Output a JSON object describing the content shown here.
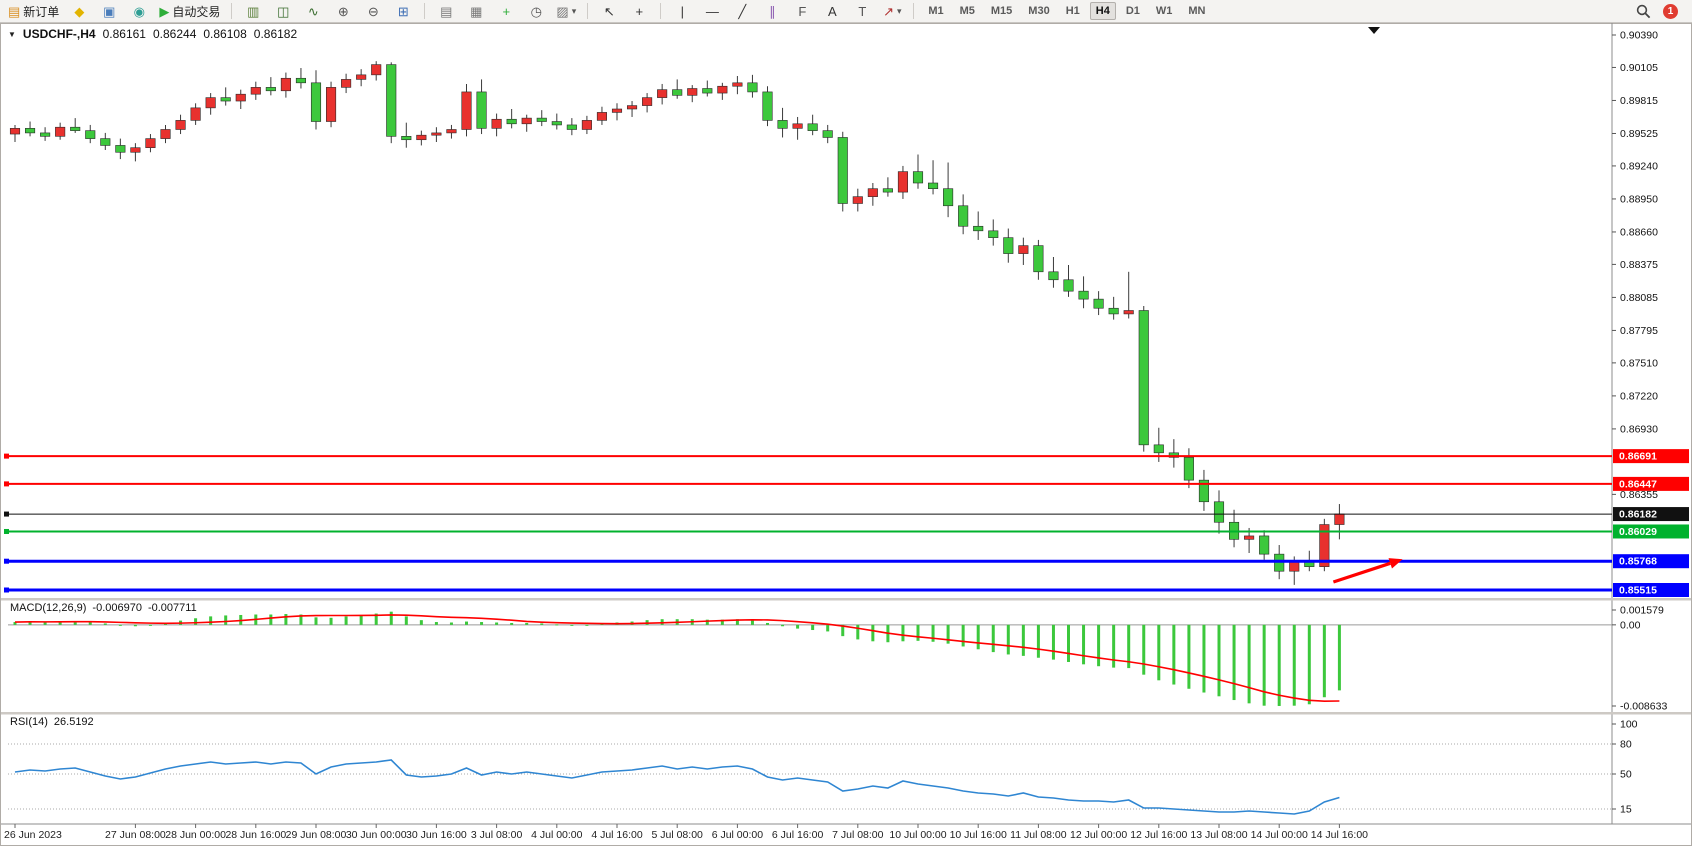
{
  "icons": {
    "down_triangle": "▼",
    "caret": "▾"
  },
  "toolbar": {
    "notification_count": "1",
    "timeframes": [
      "M1",
      "M5",
      "M15",
      "M30",
      "H1",
      "H4",
      "D1",
      "W1",
      "MN"
    ],
    "active_timeframe": "H4",
    "left_buttons": [
      {
        "name": "new-order-button",
        "icon": "new-order-icon",
        "glyph": "▤",
        "glyph_color": "#d98f22",
        "label": "新订单"
      },
      {
        "name": "metaeditor-button",
        "icon": "metaeditor-icon",
        "glyph": "◆",
        "glyph_color": "#e2b400"
      },
      {
        "name": "print-button",
        "icon": "printer-icon",
        "glyph": "▣",
        "glyph_color": "#4a7dbb"
      },
      {
        "name": "news-button",
        "icon": "globe-icon",
        "glyph": "◉",
        "glyph_color": "#2e9e94"
      },
      {
        "name": "autotrading-button",
        "icon": "autotrading-play-icon",
        "glyph": "▶",
        "glyph_color": "#2fae3a",
        "label": "自动交易"
      }
    ],
    "chart_buttons": [
      {
        "name": "bar-chart-button",
        "icon": "bar-chart-icon",
        "glyph": "▥",
        "glyph_color": "#5a7f3a"
      },
      {
        "name": "candlestick-button",
        "icon": "candlestick-icon",
        "glyph": "◫",
        "glyph_color": "#3a6d2f"
      },
      {
        "name": "line-chart-button",
        "icon": "line-chart-icon",
        "glyph": "∿",
        "glyph_color": "#3a6d2f"
      },
      {
        "name": "zoom-in-button",
        "icon": "zoom-in-icon",
        "glyph": "⊕",
        "glyph_color": "#555555"
      },
      {
        "name": "zoom-out-button",
        "icon": "zoom-out-icon",
        "glyph": "⊖",
        "glyph_color": "#555555"
      },
      {
        "name": "tile-windows-button",
        "icon": "tile-windows-icon",
        "glyph": "⊞",
        "glyph_color": "#3f6fb5"
      }
    ],
    "indicator_buttons": [
      {
        "name": "charts-stack-button",
        "icon": "charts-stack-icon",
        "glyph": "▤",
        "glyph_color": "#777777"
      },
      {
        "name": "data-window-button",
        "icon": "data-window-icon",
        "glyph": "▦",
        "glyph_color": "#777777"
      },
      {
        "name": "add-indicator-button",
        "icon": "add-indicator-icon",
        "glyph": "+",
        "glyph_color": "#2fae3a"
      },
      {
        "name": "period-clock-button",
        "icon": "clock-icon",
        "glyph": "◷",
        "glyph_color": "#555555"
      },
      {
        "name": "template-button",
        "icon": "template-icon",
        "glyph": "▨",
        "glyph_color": "#777777",
        "caret": true
      }
    ],
    "cursor_buttons": [
      {
        "name": "cursor-button",
        "icon": "cursor-arrow-icon",
        "glyph": "↖",
        "glyph_color": "#333333"
      },
      {
        "name": "crosshair-button",
        "icon": "crosshair-icon",
        "glyph": "+",
        "glyph_color": "#333333"
      }
    ],
    "draw_buttons": [
      {
        "name": "vertical-line-button",
        "icon": "vertical-line-icon",
        "glyph": "|",
        "glyph_color": "#333333"
      },
      {
        "name": "horizontal-line-button",
        "icon": "horizontal-line-icon",
        "glyph": "—",
        "glyph_color": "#333333"
      },
      {
        "name": "trendline-button",
        "icon": "trendline-icon",
        "glyph": "╱",
        "glyph_color": "#333333"
      },
      {
        "name": "channel-button",
        "icon": "channel-icon",
        "glyph": "∥",
        "glyph_color": "#8a5ab0"
      },
      {
        "name": "fibonacci-button",
        "icon": "fibonacci-icon",
        "glyph": "F",
        "glyph_color": "#555555"
      },
      {
        "name": "text-button",
        "icon": "text-icon",
        "glyph": "A",
        "glyph_color": "#333333"
      },
      {
        "name": "label-button",
        "icon": "text-label-icon",
        "glyph": "T",
        "glyph_color": "#555555"
      },
      {
        "name": "arrows-button",
        "icon": "arrow-tool-icon",
        "glyph": "↗",
        "glyph_color": "#b03030",
        "caret": true
      }
    ]
  },
  "chart": {
    "symbol": "USDCHF-,H4",
    "open": "0.86161",
    "high": "0.86244",
    "low": "0.86108",
    "close": "0.86182"
  },
  "colors": {
    "bull": "#e8312e",
    "bear": "#3cc83c",
    "wick": "#3a3a3a",
    "body_outline": "#2a2a2a",
    "macd_hist": "#3cc83c",
    "macd_signal": "#ff0000",
    "rsi_line": "#2f86d2"
  },
  "chart_data": {
    "type": "candlestick",
    "symbol": "USDCHF-",
    "timeframe": "H4",
    "price_axis": {
      "top": 0.9039,
      "bottom": 0.85515,
      "ticks": [
        "0.90390",
        "0.90105",
        "0.89815",
        "0.89525",
        "0.89240",
        "0.88950",
        "0.88660",
        "0.88375",
        "0.88085",
        "0.87795",
        "0.87510",
        "0.87220",
        "0.86930",
        "0.86355"
      ]
    },
    "levels": [
      {
        "price": 0.86691,
        "label": "0.86691",
        "color": "#ff0000",
        "width": 2
      },
      {
        "price": 0.86447,
        "label": "0.86447",
        "color": "#ff0000",
        "width": 2
      },
      {
        "price": 0.86182,
        "label": "0.86182",
        "color": "#111111",
        "width": 1
      },
      {
        "price": 0.86029,
        "label": "0.86029",
        "color": "#00b22d",
        "width": 2
      },
      {
        "price": 0.85768,
        "label": "0.85768",
        "color": "#0000ff",
        "width": 3
      },
      {
        "price": 0.85515,
        "label": "0.85515",
        "color": "#0000ff",
        "width": 3
      }
    ],
    "candles": [
      [
        0.8952,
        0.896,
        0.8945,
        0.8957
      ],
      [
        0.8957,
        0.8963,
        0.895,
        0.8953
      ],
      [
        0.8953,
        0.8958,
        0.8946,
        0.895
      ],
      [
        0.895,
        0.8962,
        0.8947,
        0.8958
      ],
      [
        0.8958,
        0.8966,
        0.8953,
        0.8955
      ],
      [
        0.8955,
        0.896,
        0.8944,
        0.8948
      ],
      [
        0.8948,
        0.8953,
        0.8938,
        0.8942
      ],
      [
        0.8942,
        0.8948,
        0.893,
        0.8936
      ],
      [
        0.8936,
        0.8944,
        0.8928,
        0.894
      ],
      [
        0.894,
        0.8952,
        0.8936,
        0.8948
      ],
      [
        0.8948,
        0.896,
        0.8944,
        0.8956
      ],
      [
        0.8956,
        0.8969,
        0.8952,
        0.8964
      ],
      [
        0.8964,
        0.8979,
        0.896,
        0.8975
      ],
      [
        0.8975,
        0.8988,
        0.8969,
        0.8984
      ],
      [
        0.8984,
        0.8993,
        0.8977,
        0.8981
      ],
      [
        0.8981,
        0.8991,
        0.8974,
        0.8987
      ],
      [
        0.8987,
        0.8998,
        0.8982,
        0.8993
      ],
      [
        0.8993,
        0.9002,
        0.8986,
        0.899
      ],
      [
        0.899,
        0.9006,
        0.8984,
        0.9001
      ],
      [
        0.9001,
        0.901,
        0.8992,
        0.8997
      ],
      [
        0.8997,
        0.9008,
        0.8956,
        0.8963
      ],
      [
        0.8963,
        0.8998,
        0.8958,
        0.8993
      ],
      [
        0.8993,
        0.9005,
        0.8988,
        0.9
      ],
      [
        0.9,
        0.9009,
        0.8994,
        0.9004
      ],
      [
        0.9004,
        0.9016,
        0.8999,
        0.9013
      ],
      [
        0.9013,
        0.9015,
        0.8944,
        0.895
      ],
      [
        0.895,
        0.8962,
        0.894,
        0.8947
      ],
      [
        0.8947,
        0.8955,
        0.8942,
        0.8951
      ],
      [
        0.8951,
        0.8958,
        0.8945,
        0.8953
      ],
      [
        0.8953,
        0.896,
        0.8948,
        0.8956
      ],
      [
        0.8956,
        0.8996,
        0.895,
        0.8989
      ],
      [
        0.8989,
        0.9,
        0.8952,
        0.8957
      ],
      [
        0.8957,
        0.897,
        0.895,
        0.8965
      ],
      [
        0.8965,
        0.8974,
        0.8957,
        0.8961
      ],
      [
        0.8961,
        0.8969,
        0.8954,
        0.8966
      ],
      [
        0.8966,
        0.8973,
        0.8959,
        0.8963
      ],
      [
        0.8963,
        0.897,
        0.8956,
        0.896
      ],
      [
        0.896,
        0.8966,
        0.8951,
        0.8956
      ],
      [
        0.8956,
        0.8968,
        0.8952,
        0.8964
      ],
      [
        0.8964,
        0.8976,
        0.896,
        0.8971
      ],
      [
        0.8971,
        0.8979,
        0.8964,
        0.8974
      ],
      [
        0.8974,
        0.8981,
        0.8967,
        0.8977
      ],
      [
        0.8977,
        0.8988,
        0.8971,
        0.8984
      ],
      [
        0.8984,
        0.8996,
        0.8978,
        0.8991
      ],
      [
        0.8991,
        0.9,
        0.8983,
        0.8986
      ],
      [
        0.8986,
        0.8995,
        0.898,
        0.8992
      ],
      [
        0.8992,
        0.8999,
        0.8985,
        0.8988
      ],
      [
        0.8988,
        0.8997,
        0.8982,
        0.8994
      ],
      [
        0.8994,
        0.9003,
        0.8987,
        0.8997
      ],
      [
        0.8997,
        0.9004,
        0.8984,
        0.8989
      ],
      [
        0.8989,
        0.8994,
        0.8959,
        0.8964
      ],
      [
        0.8964,
        0.8975,
        0.8949,
        0.8957
      ],
      [
        0.8957,
        0.8967,
        0.8947,
        0.8961
      ],
      [
        0.8961,
        0.8969,
        0.8951,
        0.8955
      ],
      [
        0.8955,
        0.896,
        0.8944,
        0.8949
      ],
      [
        0.8949,
        0.8954,
        0.8884,
        0.8891
      ],
      [
        0.8891,
        0.8904,
        0.8884,
        0.8897
      ],
      [
        0.8897,
        0.8909,
        0.8889,
        0.8904
      ],
      [
        0.8904,
        0.8914,
        0.8897,
        0.8901
      ],
      [
        0.8901,
        0.8924,
        0.8895,
        0.8919
      ],
      [
        0.8919,
        0.8934,
        0.8904,
        0.8909
      ],
      [
        0.8909,
        0.8929,
        0.8899,
        0.8904
      ],
      [
        0.8904,
        0.8927,
        0.8879,
        0.8889
      ],
      [
        0.8889,
        0.8899,
        0.8864,
        0.8871
      ],
      [
        0.8871,
        0.8884,
        0.8859,
        0.8867
      ],
      [
        0.8867,
        0.8877,
        0.8854,
        0.8861
      ],
      [
        0.8861,
        0.8869,
        0.8839,
        0.8847
      ],
      [
        0.8847,
        0.8861,
        0.8837,
        0.8854
      ],
      [
        0.8854,
        0.8859,
        0.8824,
        0.8831
      ],
      [
        0.8831,
        0.8844,
        0.8817,
        0.8824
      ],
      [
        0.8824,
        0.8837,
        0.8809,
        0.8814
      ],
      [
        0.8814,
        0.8827,
        0.8799,
        0.8807
      ],
      [
        0.8807,
        0.8814,
        0.8793,
        0.8799
      ],
      [
        0.8799,
        0.8809,
        0.8789,
        0.8794
      ],
      [
        0.8794,
        0.8831,
        0.879,
        0.8797
      ],
      [
        0.8797,
        0.8801,
        0.8673,
        0.8679
      ],
      [
        0.8679,
        0.8694,
        0.8664,
        0.8672
      ],
      [
        0.8672,
        0.8684,
        0.8659,
        0.8668
      ],
      [
        0.8668,
        0.8676,
        0.8641,
        0.8648
      ],
      [
        0.8648,
        0.8657,
        0.8621,
        0.8629
      ],
      [
        0.8629,
        0.8639,
        0.8601,
        0.8611
      ],
      [
        0.8611,
        0.8622,
        0.8589,
        0.8596
      ],
      [
        0.8596,
        0.8606,
        0.8584,
        0.8599
      ],
      [
        0.8599,
        0.8604,
        0.8578,
        0.8583
      ],
      [
        0.8583,
        0.8591,
        0.8561,
        0.8568
      ],
      [
        0.8568,
        0.8581,
        0.8556,
        0.8577
      ],
      [
        0.8577,
        0.8586,
        0.8568,
        0.8572
      ],
      [
        0.8572,
        0.8614,
        0.8568,
        0.8609
      ],
      [
        0.8609,
        0.8627,
        0.8596,
        0.86182
      ]
    ],
    "time_axis": [
      {
        "bar": 0,
        "text": "26 Jun 2023"
      },
      {
        "bar": 8,
        "text": "27 Jun 08:00"
      },
      {
        "bar": 12,
        "text": "28 Jun 00:00"
      },
      {
        "bar": 16,
        "text": "28 Jun 16:00"
      },
      {
        "bar": 20,
        "text": "29 Jun 08:00"
      },
      {
        "bar": 24,
        "text": "30 Jun 00:00"
      },
      {
        "bar": 28,
        "text": "30 Jun 16:00"
      },
      {
        "bar": 32,
        "text": "3 Jul 08:00"
      },
      {
        "bar": 36,
        "text": "4 Jul 00:00"
      },
      {
        "bar": 40,
        "text": "4 Jul 16:00"
      },
      {
        "bar": 44,
        "text": "5 Jul 08:00"
      },
      {
        "bar": 48,
        "text": "6 Jul 00:00"
      },
      {
        "bar": 52,
        "text": "6 Jul 16:00"
      },
      {
        "bar": 56,
        "text": "7 Jul 08:00"
      },
      {
        "bar": 60,
        "text": "10 Jul 00:00"
      },
      {
        "bar": 64,
        "text": "10 Jul 16:00"
      },
      {
        "bar": 68,
        "text": "11 Jul 08:00"
      },
      {
        "bar": 72,
        "text": "12 Jul 00:00"
      },
      {
        "bar": 76,
        "text": "12 Jul 16:00"
      },
      {
        "bar": 80,
        "text": "13 Jul 08:00"
      },
      {
        "bar": 84,
        "text": "14 Jul 00:00"
      },
      {
        "bar": 88,
        "text": "14 Jul 16:00"
      }
    ],
    "macd": {
      "label": "MACD(12,26,9)",
      "value": "-0.006970",
      "signal_value": "-0.007711",
      "axis_top": 0.001579,
      "axis_bottom": -0.008633,
      "axis_labels": [
        "0.001579",
        "0.00",
        "-0.008633"
      ],
      "values": [
        0.0003,
        0.00035,
        0.0003,
        0.00035,
        0.0004,
        0.0003,
        0.00015,
        -5e-05,
        -0.00015,
        0.0,
        0.0002,
        0.00045,
        0.0007,
        0.0009,
        0.001,
        0.00105,
        0.0011,
        0.0011,
        0.00115,
        0.0011,
        0.0008,
        0.00075,
        0.0009,
        0.00105,
        0.0012,
        0.0014,
        0.0009,
        0.0005,
        0.0003,
        0.00025,
        0.00035,
        0.0003,
        0.00025,
        0.0002,
        0.0002,
        0.00015,
        5e-05,
        -5e-05,
        0.0,
        0.0001,
        0.00025,
        0.00035,
        0.0005,
        0.0006,
        0.0006,
        0.0006,
        0.00055,
        0.00055,
        0.0006,
        0.0005,
        0.0002,
        -0.00015,
        -0.0004,
        -0.00055,
        -0.0007,
        -0.0012,
        -0.00155,
        -0.00175,
        -0.00185,
        -0.00175,
        -0.0017,
        -0.0018,
        -0.002,
        -0.0023,
        -0.0026,
        -0.0029,
        -0.00315,
        -0.0033,
        -0.0035,
        -0.0037,
        -0.00395,
        -0.0042,
        -0.0044,
        -0.00455,
        -0.0046,
        -0.0053,
        -0.0059,
        -0.00635,
        -0.0068,
        -0.0072,
        -0.0076,
        -0.008,
        -0.00835,
        -0.0086,
        -0.00863,
        -0.0086,
        -0.00845,
        -0.0077,
        -0.00697
      ]
    },
    "rsi": {
      "label": "RSI(14)",
      "value": "26.5192",
      "axis_labels": [
        "100",
        "80",
        "50",
        "15"
      ],
      "levels": [
        80,
        50,
        15
      ],
      "values": [
        52,
        54,
        53,
        55,
        56,
        52,
        48,
        45,
        47,
        51,
        55,
        58,
        60,
        62,
        60,
        61,
        62,
        60,
        62,
        61,
        50,
        57,
        60,
        61,
        62,
        64,
        49,
        47,
        48,
        50,
        56,
        49,
        52,
        50,
        52,
        50,
        48,
        46,
        49,
        52,
        53,
        54,
        56,
        58,
        55,
        57,
        55,
        57,
        58,
        55,
        47,
        44,
        46,
        44,
        42,
        33,
        35,
        38,
        36,
        43,
        40,
        38,
        36,
        33,
        31,
        30,
        28,
        31,
        27,
        26,
        24,
        23,
        23,
        22,
        24,
        16,
        16,
        15,
        14,
        13,
        12,
        12,
        13,
        12,
        11,
        10,
        13,
        22,
        26.5
      ]
    },
    "arrow": {
      "bar_from": 87.6,
      "price_from": 0.85585,
      "bar_to": 92.2,
      "price_to": 0.85785,
      "color": "#ff0000"
    },
    "shift_marker_bar": 90.3
  }
}
